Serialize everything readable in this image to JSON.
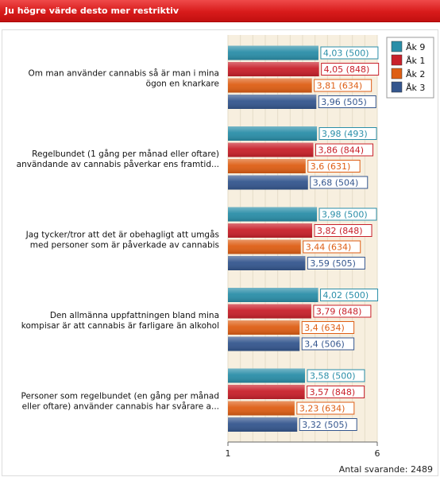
{
  "header": {
    "title": "Ju högre värde desto mer restriktiv"
  },
  "footer": {
    "respondents": "Antal svarande: 2489"
  },
  "chart_data": {
    "type": "bar",
    "orientation": "horizontal",
    "xlim": [
      1,
      6
    ],
    "xticks": [
      "1",
      "6"
    ],
    "grid": true,
    "legend_position": "top-right",
    "categories": [
      [
        "Om man använder cannabis så är man i mina",
        "ögon en knarkare"
      ],
      [
        "Regelbundet (1 gång per månad eller oftare)",
        "användande av cannabis påverkar ens framtid..."
      ],
      [
        "Jag tycker/tror att det är obehagligt att umgås",
        "med personer som är påverkade av cannabis"
      ],
      [
        "Den allmänna uppfattningen bland mina",
        "kompisar är att cannabis är farligare än alkohol"
      ],
      [
        "Personer som regelbundet (en gång per månad",
        "eller oftare) använder cannabis har svårare a..."
      ]
    ],
    "series": [
      {
        "name": "Åk 9",
        "color": "#2a8ea8",
        "values": [
          4.03,
          3.98,
          3.98,
          4.02,
          3.58
        ],
        "labels": [
          "4,03 (500)",
          "3,98 (493)",
          "3,98 (500)",
          "4,02 (500)",
          "3,58 (500)"
        ]
      },
      {
        "name": "Åk 1",
        "color": "#c8202a",
        "values": [
          4.05,
          3.86,
          3.82,
          3.79,
          3.57
        ],
        "labels": [
          "4,05 (848)",
          "3,86 (844)",
          "3,82 (848)",
          "3,79 (848)",
          "3,57 (848)"
        ]
      },
      {
        "name": "Åk 2",
        "color": "#de5e14",
        "values": [
          3.81,
          3.6,
          3.44,
          3.4,
          3.23
        ],
        "labels": [
          "3,81 (634)",
          "3,6 (631)",
          "3,44 (634)",
          "3,4 (634)",
          "3,23 (634)"
        ]
      },
      {
        "name": "Åk 3",
        "color": "#34568e",
        "values": [
          3.96,
          3.68,
          3.59,
          3.4,
          3.32
        ],
        "labels": [
          "3,96 (505)",
          "3,68 (504)",
          "3,59 (505)",
          "3,4 (506)",
          "3,32 (505)"
        ]
      }
    ]
  }
}
